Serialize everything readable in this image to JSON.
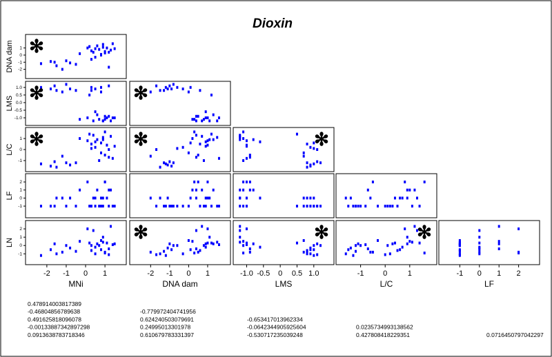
{
  "chart_data": {
    "type": "scatter-matrix",
    "title": "Dioxin",
    "color": "#0000ff",
    "variables": [
      {
        "name": "MNi",
        "xlim": [
          -3.1,
          2.1
        ],
        "xticks": [
          -2,
          -1,
          0,
          1
        ],
        "values": [
          -2.3,
          -1.8,
          -1.6,
          -1.5,
          -1.2,
          -1.0,
          -0.8,
          -0.3,
          0.1,
          0.2,
          0.3,
          0.4,
          0.5,
          0.6,
          0.7,
          0.8,
          0.9,
          1.0,
          1.1,
          1.2,
          1.3,
          1.4,
          0.5,
          0.8,
          1.0,
          0.3,
          -0.5,
          0.9,
          1.2,
          1.5
        ]
      },
      {
        "name": "DNA dam",
        "xlim": [
          -3.1,
          2.2
        ],
        "xticks": [
          -2,
          -1,
          0,
          1
        ],
        "ylim": [
          -3.3,
          2.9
        ],
        "yticks": [
          1,
          0,
          -1,
          -2
        ],
        "values": [
          -1.2,
          -0.9,
          -1.0,
          -1.5,
          -2.0,
          -0.8,
          -1.1,
          0.2,
          1.0,
          1.2,
          0.6,
          0.4,
          -0.3,
          1.3,
          0.8,
          0.1,
          1.5,
          0.5,
          1.0,
          -1.7,
          0.7,
          1.6,
          0.9,
          0.0,
          0.3,
          -0.6,
          -1.3,
          1.1,
          0.4,
          0.9
        ]
      },
      {
        "name": "LMS",
        "xlim": [
          -1.4,
          1.6
        ],
        "xticks": [
          {
            "value": -1,
            "label": "-1.0"
          },
          -0.5,
          0,
          0.5,
          {
            "value": 1,
            "label": "1.0"
          }
        ],
        "ylim": [
          -1.5,
          1.4
        ],
        "yticks": [
          {
            "value": 1,
            "label": "1.0"
          },
          0.5,
          {
            "value": 0,
            "label": "0.0"
          },
          -0.5,
          {
            "value": -1,
            "label": "-1.0"
          }
        ],
        "values": [
          1.0,
          0.9,
          1.1,
          0.8,
          0.7,
          1.2,
          0.9,
          -1.1,
          -1.0,
          0.5,
          0.8,
          -1.2,
          0.9,
          -0.8,
          -1.1,
          1.0,
          -1.2,
          -0.9,
          -1.0,
          1.1,
          -1.2,
          -1.0,
          -0.6,
          0.7,
          -1.1,
          1.0,
          0.8,
          -1.2,
          -0.9,
          -1.0
        ]
      },
      {
        "name": "L/C",
        "xlim": [
          -2.0,
          2.1
        ],
        "xticks": [
          -1,
          0,
          1
        ],
        "ylim": [
          -2.0,
          2.0
        ],
        "yticks": [
          1,
          0,
          -1
        ],
        "values": [
          -1.3,
          -1.5,
          -1.1,
          -1.6,
          -0.6,
          -1.2,
          -1.4,
          1.0,
          0.8,
          1.4,
          0.5,
          1.3,
          0.2,
          0.9,
          -1.0,
          0.6,
          1.1,
          -0.5,
          0.4,
          0.0,
          1.2,
          -0.8,
          0.7,
          -0.3,
          1.6,
          0.1,
          -1.2,
          0.9,
          -0.7,
          0.3
        ]
      },
      {
        "name": "LF",
        "xlim": [
          -2.07,
          3.07
        ],
        "xticks": [
          -1,
          0,
          1,
          2
        ],
        "ylim": [
          -2.45,
          3.03
        ],
        "yticks": [
          2,
          1,
          0,
          -1
        ],
        "values": [
          -1,
          -1,
          -1,
          0,
          0,
          -1,
          0,
          1,
          2,
          -1,
          -1,
          0,
          -1,
          1,
          -1,
          0,
          -1,
          2,
          0,
          -1,
          1,
          -1,
          0,
          -1,
          2,
          -1,
          -1,
          0,
          1,
          -1
        ]
      },
      {
        "name": "LN",
        "ylim": [
          -2.3,
          3.0
        ],
        "yticks": [
          2,
          1,
          0,
          -1
        ],
        "values": [
          -1.2,
          -0.5,
          0.2,
          -1.0,
          -0.8,
          0.0,
          -0.3,
          0.5,
          2.0,
          0.3,
          -0.6,
          1.8,
          -1.0,
          0.2,
          0.0,
          -0.5,
          0.4,
          -0.8,
          0.3,
          -1.1,
          2.3,
          0.1,
          -0.2,
          0.6,
          -0.9,
          0.0,
          -0.7,
          1.0,
          -0.4,
          0.2
        ]
      }
    ],
    "significance_marker": "✻",
    "significant": [
      {
        "row": 0,
        "col": 0,
        "corner": "left"
      },
      {
        "row": 1,
        "col": 0,
        "corner": "left"
      },
      {
        "row": 1,
        "col": 1,
        "corner": "left"
      },
      {
        "row": 2,
        "col": 0,
        "corner": "left"
      },
      {
        "row": 2,
        "col": 1,
        "corner": "left"
      },
      {
        "row": 2,
        "col": 2,
        "corner": "right"
      },
      {
        "row": 4,
        "col": 1,
        "corner": "left"
      },
      {
        "row": 4,
        "col": 2,
        "corner": "right"
      },
      {
        "row": 4,
        "col": 3,
        "corner": "right"
      }
    ],
    "correlations": [
      [
        "0.478914003817389",
        "-0.46804856789638",
        "0.491625818096078",
        "-0.0013388734289729​8",
        "0.0913638783718346"
      ],
      [
        "-0.779972404741956",
        "0.624240503079691",
        "0.24995013301978",
        "0.610679783331397"
      ],
      [
        "-0.653417013962334",
        "-0.0642344905925604",
        "-0.530717235039248"
      ],
      [
        "0.0235734993138562",
        "0.427808418229351"
      ],
      [
        "0.0716450797042297"
      ]
    ]
  }
}
